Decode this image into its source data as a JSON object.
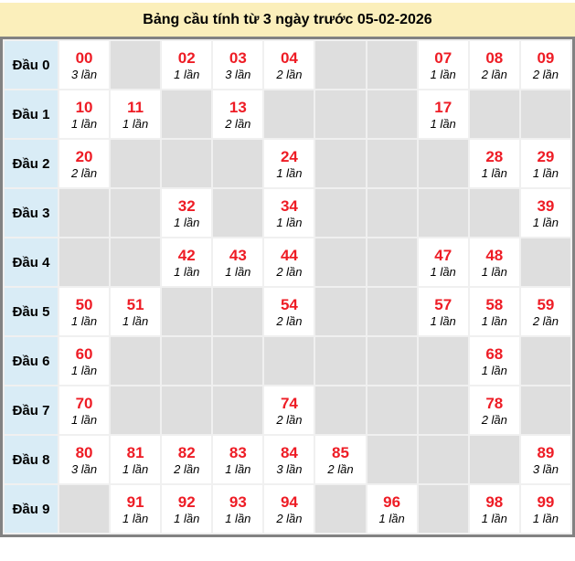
{
  "title": "Bảng cầu tính từ 3 ngày trước 05-02-2026",
  "colors": {
    "title_bg": "#FBEFBB",
    "header_cell_bg": "#D9ECF6",
    "empty_cell_bg": "#DEDEDE",
    "filled_cell_bg": "#FFFFFF",
    "number_color": "#EE1C25",
    "outer_border": "#828282",
    "grid_gap": "#F0F0F0"
  },
  "chart_data": {
    "type": "table",
    "title": "Bảng cầu tính từ 3 ngày trước 05-02-2026",
    "unit_word": "lần",
    "rows": [
      {
        "label": "Đầu 0",
        "cells": [
          {
            "number": "00",
            "times": "3 lần"
          },
          null,
          {
            "number": "02",
            "times": "1 lần"
          },
          {
            "number": "03",
            "times": "3 lần"
          },
          {
            "number": "04",
            "times": "2 lần"
          },
          null,
          null,
          {
            "number": "07",
            "times": "1 lần"
          },
          {
            "number": "08",
            "times": "2 lần"
          },
          {
            "number": "09",
            "times": "2 lần"
          }
        ]
      },
      {
        "label": "Đầu 1",
        "cells": [
          {
            "number": "10",
            "times": "1 lần"
          },
          {
            "number": "11",
            "times": "1 lần"
          },
          null,
          {
            "number": "13",
            "times": "2 lần"
          },
          null,
          null,
          null,
          {
            "number": "17",
            "times": "1 lần"
          },
          null,
          null
        ]
      },
      {
        "label": "Đầu 2",
        "cells": [
          {
            "number": "20",
            "times": "2 lần"
          },
          null,
          null,
          null,
          {
            "number": "24",
            "times": "1 lần"
          },
          null,
          null,
          null,
          {
            "number": "28",
            "times": "1 lần"
          },
          {
            "number": "29",
            "times": "1 lần"
          }
        ]
      },
      {
        "label": "Đầu 3",
        "cells": [
          null,
          null,
          {
            "number": "32",
            "times": "1 lần"
          },
          null,
          {
            "number": "34",
            "times": "1 lần"
          },
          null,
          null,
          null,
          null,
          {
            "number": "39",
            "times": "1 lần"
          }
        ]
      },
      {
        "label": "Đầu 4",
        "cells": [
          null,
          null,
          {
            "number": "42",
            "times": "1 lần"
          },
          {
            "number": "43",
            "times": "1 lần"
          },
          {
            "number": "44",
            "times": "2 lần"
          },
          null,
          null,
          {
            "number": "47",
            "times": "1 lần"
          },
          {
            "number": "48",
            "times": "1 lần"
          },
          null
        ]
      },
      {
        "label": "Đầu 5",
        "cells": [
          {
            "number": "50",
            "times": "1 lần"
          },
          {
            "number": "51",
            "times": "1 lần"
          },
          null,
          null,
          {
            "number": "54",
            "times": "2 lần"
          },
          null,
          null,
          {
            "number": "57",
            "times": "1 lần"
          },
          {
            "number": "58",
            "times": "1 lần"
          },
          {
            "number": "59",
            "times": "2 lần"
          }
        ]
      },
      {
        "label": "Đầu 6",
        "cells": [
          {
            "number": "60",
            "times": "1 lần"
          },
          null,
          null,
          null,
          null,
          null,
          null,
          null,
          {
            "number": "68",
            "times": "1 lần"
          },
          null
        ]
      },
      {
        "label": "Đầu 7",
        "cells": [
          {
            "number": "70",
            "times": "1 lần"
          },
          null,
          null,
          null,
          {
            "number": "74",
            "times": "2 lần"
          },
          null,
          null,
          null,
          {
            "number": "78",
            "times": "2 lần"
          },
          null
        ]
      },
      {
        "label": "Đầu 8",
        "cells": [
          {
            "number": "80",
            "times": "3 lần"
          },
          {
            "number": "81",
            "times": "1 lần"
          },
          {
            "number": "82",
            "times": "2 lần"
          },
          {
            "number": "83",
            "times": "1 lần"
          },
          {
            "number": "84",
            "times": "3 lần"
          },
          {
            "number": "85",
            "times": "2 lần"
          },
          null,
          null,
          null,
          {
            "number": "89",
            "times": "3 lần"
          }
        ]
      },
      {
        "label": "Đầu 9",
        "cells": [
          null,
          {
            "number": "91",
            "times": "1 lần"
          },
          {
            "number": "92",
            "times": "1 lần"
          },
          {
            "number": "93",
            "times": "1 lần"
          },
          {
            "number": "94",
            "times": "2 lần"
          },
          null,
          {
            "number": "96",
            "times": "1 lần"
          },
          null,
          {
            "number": "98",
            "times": "1 lần"
          },
          {
            "number": "99",
            "times": "1 lần"
          }
        ]
      }
    ]
  }
}
